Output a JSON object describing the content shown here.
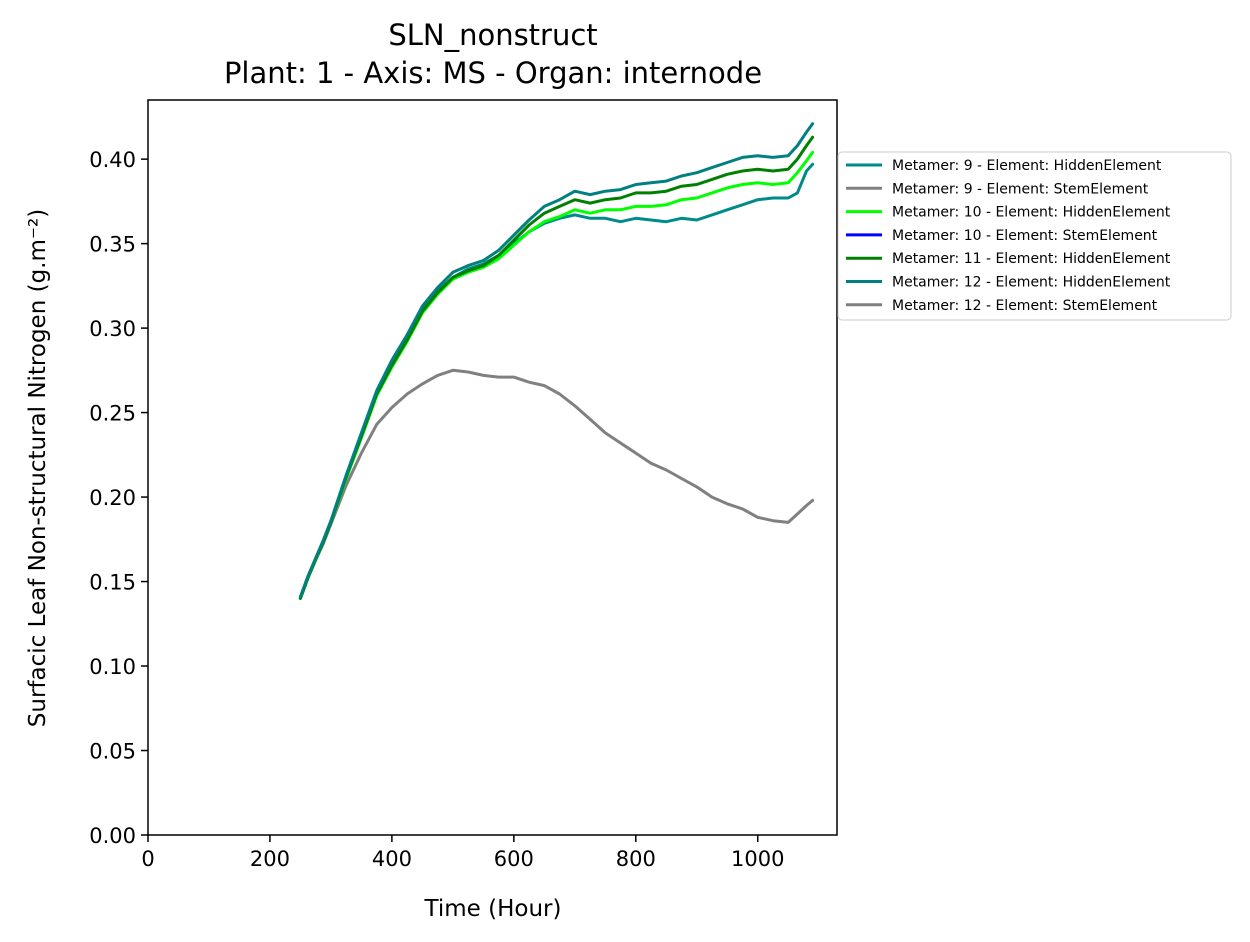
{
  "chart_data": {
    "type": "line",
    "title": "SLN_nonstruct",
    "subtitle": "Plant: 1 - Axis: MS - Organ: internode",
    "xlabel": "Time (Hour)",
    "ylabel": "Surfacic Leaf Non-structural Nitrogen (g.m⁻²)",
    "xlim": [
      0,
      1130
    ],
    "ylim": [
      0,
      0.435
    ],
    "xticks": [
      0,
      200,
      400,
      600,
      800,
      1000
    ],
    "xtick_labels": [
      "0",
      "200",
      "400",
      "600",
      "800",
      "1000"
    ],
    "yticks": [
      0,
      0.05,
      0.1,
      0.15,
      0.2,
      0.25,
      0.3,
      0.35,
      0.4
    ],
    "ytick_labels": [
      "0.00",
      "0.05",
      "0.10",
      "0.15",
      "0.20",
      "0.25",
      "0.30",
      "0.35",
      "0.40"
    ],
    "grid": false,
    "legend_position": "outside-right",
    "series": [
      {
        "name": "Metamer: 9 - Element: HiddenElement",
        "color": "#008b8b",
        "x": [
          250,
          262,
          275,
          287,
          300,
          325,
          350,
          375,
          400,
          425,
          450,
          475,
          500,
          525,
          550,
          575,
          600,
          625,
          650,
          675,
          700,
          725,
          750,
          775,
          800,
          825,
          850,
          875,
          900,
          925,
          950,
          975,
          1000,
          1025,
          1050,
          1065,
          1080,
          1090
        ],
        "y": [
          0.14,
          0.152,
          0.163,
          0.173,
          0.185,
          0.212,
          0.237,
          0.262,
          0.279,
          0.294,
          0.311,
          0.322,
          0.33,
          0.335,
          0.338,
          0.343,
          0.35,
          0.357,
          0.362,
          0.365,
          0.367,
          0.365,
          0.365,
          0.363,
          0.365,
          0.364,
          0.363,
          0.365,
          0.364,
          0.367,
          0.37,
          0.373,
          0.376,
          0.377,
          0.377,
          0.38,
          0.393,
          0.397
        ]
      },
      {
        "name": "Metamer: 9 - Element: StemElement",
        "color": "#808080",
        "x": [
          250,
          262,
          275,
          287,
          300,
          325,
          350,
          375,
          400,
          425,
          450,
          475,
          500,
          525,
          550,
          575,
          600,
          625,
          650,
          675,
          700,
          725,
          750,
          775,
          800,
          825,
          850,
          875,
          900,
          925,
          950,
          975,
          1000,
          1025,
          1050,
          1065,
          1080,
          1090
        ],
        "y": [
          0.14,
          0.152,
          0.163,
          0.172,
          0.184,
          0.207,
          0.226,
          0.243,
          0.253,
          0.261,
          0.267,
          0.272,
          0.275,
          0.274,
          0.272,
          0.271,
          0.271,
          0.268,
          0.266,
          0.261,
          0.254,
          0.246,
          0.238,
          0.232,
          0.226,
          0.22,
          0.216,
          0.211,
          0.206,
          0.2,
          0.196,
          0.193,
          0.188,
          0.186,
          0.185,
          0.19,
          0.195,
          0.198
        ]
      },
      {
        "name": "Metamer: 10 - Element: HiddenElement",
        "color": "#00ff00",
        "x": [
          250,
          262,
          275,
          287,
          300,
          325,
          350,
          375,
          400,
          425,
          450,
          475,
          500,
          525,
          550,
          575,
          600,
          625,
          650,
          675,
          700,
          725,
          750,
          775,
          800,
          825,
          850,
          875,
          900,
          925,
          950,
          975,
          1000,
          1025,
          1050,
          1065,
          1080,
          1090
        ],
        "y": [
          0.14,
          0.152,
          0.163,
          0.173,
          0.185,
          0.211,
          0.235,
          0.26,
          0.277,
          0.292,
          0.309,
          0.32,
          0.329,
          0.333,
          0.336,
          0.341,
          0.349,
          0.357,
          0.363,
          0.366,
          0.37,
          0.368,
          0.37,
          0.37,
          0.372,
          0.372,
          0.373,
          0.376,
          0.377,
          0.38,
          0.383,
          0.385,
          0.386,
          0.385,
          0.386,
          0.392,
          0.399,
          0.404
        ]
      },
      {
        "name": "Metamer: 10 - Element: StemElement",
        "color": "#0000ff",
        "x": [],
        "y": []
      },
      {
        "name": "Metamer: 11 - Element: HiddenElement",
        "color": "#008000",
        "x": [
          250,
          262,
          275,
          287,
          300,
          325,
          350,
          375,
          400,
          425,
          450,
          475,
          500,
          525,
          550,
          575,
          600,
          625,
          650,
          675,
          700,
          725,
          750,
          775,
          800,
          825,
          850,
          875,
          900,
          925,
          950,
          975,
          1000,
          1025,
          1050,
          1065,
          1080,
          1090
        ],
        "y": [
          0.14,
          0.152,
          0.163,
          0.173,
          0.185,
          0.212,
          0.236,
          0.261,
          0.278,
          0.293,
          0.31,
          0.321,
          0.33,
          0.334,
          0.337,
          0.343,
          0.352,
          0.361,
          0.368,
          0.372,
          0.376,
          0.374,
          0.376,
          0.377,
          0.38,
          0.38,
          0.381,
          0.384,
          0.385,
          0.388,
          0.391,
          0.393,
          0.394,
          0.393,
          0.394,
          0.4,
          0.408,
          0.413
        ]
      },
      {
        "name": "Metamer: 12 - Element: HiddenElement",
        "color": "#008080",
        "x": [
          250,
          262,
          275,
          287,
          300,
          325,
          350,
          375,
          400,
          425,
          450,
          475,
          500,
          525,
          550,
          575,
          600,
          625,
          650,
          675,
          700,
          725,
          750,
          775,
          800,
          825,
          850,
          875,
          900,
          925,
          950,
          975,
          1000,
          1025,
          1050,
          1065,
          1080,
          1090
        ],
        "y": [
          0.141,
          0.153,
          0.164,
          0.174,
          0.186,
          0.213,
          0.238,
          0.263,
          0.281,
          0.296,
          0.313,
          0.324,
          0.333,
          0.337,
          0.34,
          0.346,
          0.355,
          0.364,
          0.372,
          0.376,
          0.381,
          0.379,
          0.381,
          0.382,
          0.385,
          0.386,
          0.387,
          0.39,
          0.392,
          0.395,
          0.398,
          0.401,
          0.402,
          0.401,
          0.402,
          0.408,
          0.416,
          0.421
        ]
      },
      {
        "name": "Metamer: 12 - Element: StemElement",
        "color": "#808080",
        "x": [],
        "y": []
      }
    ]
  }
}
